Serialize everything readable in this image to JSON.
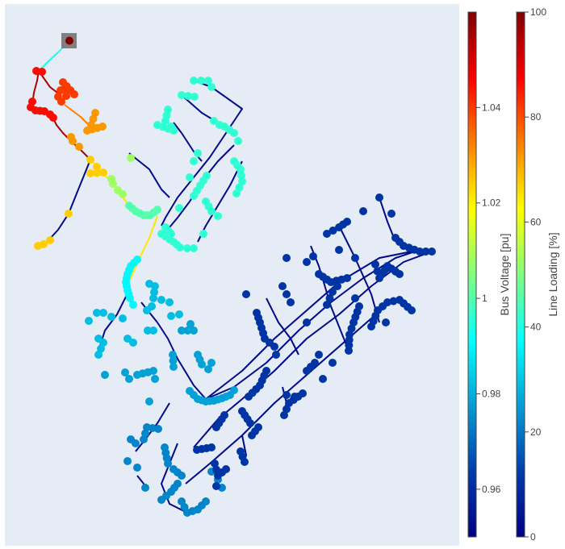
{
  "chart_data": {
    "type": "network",
    "title": "",
    "colorbars": [
      {
        "name": "bus-voltage",
        "title": "Bus Voltage [pu]",
        "colorscale": "jet",
        "range": [
          0.95,
          1.06
        ],
        "ticks": [
          {
            "value": 0.96,
            "label": "0.96"
          },
          {
            "value": 0.98,
            "label": "0.98"
          },
          {
            "value": 1.0,
            "label": "1"
          },
          {
            "value": 1.02,
            "label": "1.02"
          },
          {
            "value": 1.04,
            "label": "1.04"
          }
        ]
      },
      {
        "name": "line-loading",
        "title": "Line Loading [%]",
        "colorscale": "jet",
        "range": [
          0,
          100
        ],
        "ticks": [
          {
            "value": 0,
            "label": "0"
          },
          {
            "value": 20,
            "label": "20"
          },
          {
            "value": 40,
            "label": "40"
          },
          {
            "value": 60,
            "label": "60"
          },
          {
            "value": 80,
            "label": "80"
          },
          {
            "value": 100,
            "label": "100"
          }
        ]
      }
    ],
    "ext_grid": {
      "marker": "square",
      "color": "#808080"
    },
    "bus_voltage_by_branch": {
      "external-grid": 1.06,
      "feeder-head-cluster": 1.045,
      "upper-spur": 1.04,
      "orange-spur": 1.03,
      "left-feeder": 1.024,
      "yellow-junction": 1.008,
      "green-cluster": 1.0,
      "upper-mesh": 0.996,
      "cyan-corridor": 0.99,
      "left-lower-cluster": 0.982,
      "central-cluster": 0.978,
      "lower-left-cluster": 0.974,
      "lower-right-network": 0.962
    },
    "line_loading_by_branch": {
      "ext-grid-line": 40,
      "head-lines": 95,
      "main-trunk": 75,
      "orange-segment": 65,
      "mid-trunk": 45,
      "laterals": 2
    }
  }
}
